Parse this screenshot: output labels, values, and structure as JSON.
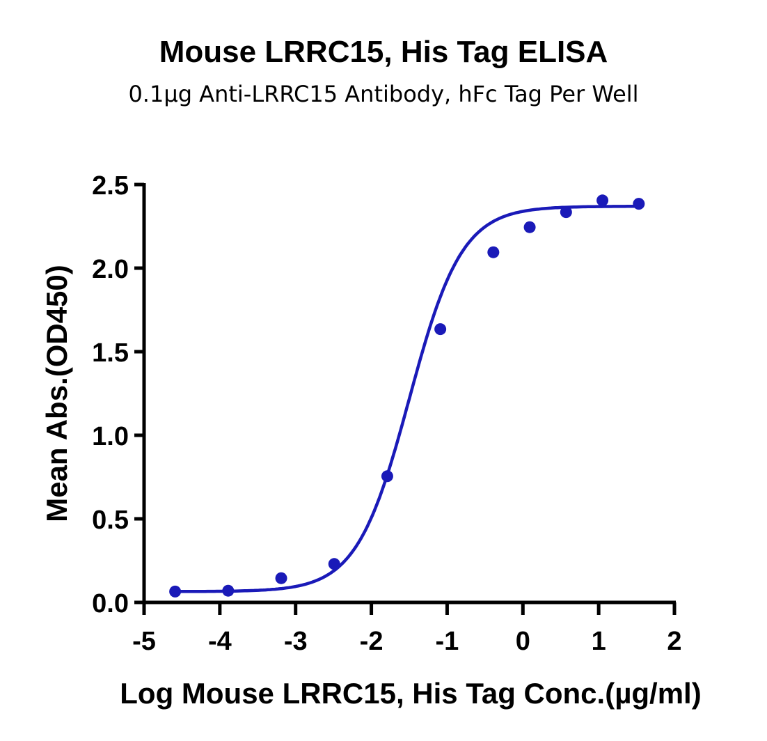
{
  "chart_data": {
    "type": "scatter",
    "title": "Mouse LRRC15, His Tag ELISA",
    "subtitle": "0.1µg Anti-LRRC15 Antibody, hFc Tag Per Well",
    "xlabel": "Log Mouse LRRC15, His Tag Conc.(µg/ml)",
    "ylabel": "Mean Abs.(OD450)",
    "xlim": [
      -5,
      2
    ],
    "ylim": [
      0,
      2.5
    ],
    "x_ticks": [
      -5,
      -4,
      -3,
      -2,
      -1,
      0,
      1,
      2
    ],
    "x_tick_labels": [
      "-5",
      "-4",
      "-3",
      "-2",
      "-1",
      "0",
      "1",
      "2"
    ],
    "y_ticks": [
      0,
      0.5,
      1,
      1.5,
      2,
      2.5
    ],
    "y_tick_labels": [
      "0.0",
      "0.5",
      "1.0",
      "1.5",
      "2.0",
      "2.5"
    ],
    "grid": false,
    "series": [
      {
        "color": "#1a1ab8",
        "x": [
          -4.59,
          -3.89,
          -3.19,
          -2.49,
          -1.79,
          -1.09,
          -0.39,
          0.09,
          0.57,
          1.05,
          1.53
        ],
        "y": [
          0.065,
          0.07,
          0.145,
          0.23,
          0.755,
          1.635,
          2.095,
          2.245,
          2.335,
          2.405,
          2.385
        ]
      }
    ],
    "fit_curve": {
      "type": "4PL",
      "color": "#1a1ab8",
      "bottom": 0.065,
      "top": 2.37,
      "log_ec50": -1.5,
      "hill_slope": 1.25,
      "x_range": [
        -4.59,
        1.53
      ]
    }
  }
}
